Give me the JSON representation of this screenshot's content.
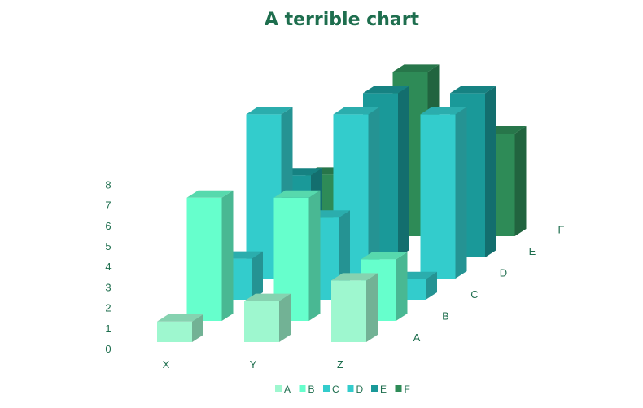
{
  "chart_data": {
    "type": "bar",
    "subtype": "3d-column",
    "title": "A terrible chart",
    "categories": [
      "X",
      "Y",
      "Z"
    ],
    "depth_categories": [
      "A",
      "B",
      "C",
      "D",
      "E",
      "F"
    ],
    "ylim": [
      0,
      8
    ],
    "yticks": [
      0,
      1,
      2,
      3,
      4,
      5,
      6,
      7,
      8
    ],
    "legend_position": "bottom",
    "series": [
      {
        "name": "A",
        "values": [
          1,
          2,
          3
        ],
        "color": "#9ef7cf"
      },
      {
        "name": "B",
        "values": [
          6,
          6,
          3
        ],
        "color": "#66ffcc"
      },
      {
        "name": "C",
        "values": [
          2,
          4,
          1
        ],
        "color": "#33cccc"
      },
      {
        "name": "D",
        "values": [
          8,
          8,
          8
        ],
        "color": "#33cccc"
      },
      {
        "name": "E",
        "values": [
          4,
          8,
          8
        ],
        "color": "#1a9999"
      },
      {
        "name": "F",
        "values": [
          3,
          8,
          5
        ],
        "color": "#2e8b57"
      }
    ]
  }
}
